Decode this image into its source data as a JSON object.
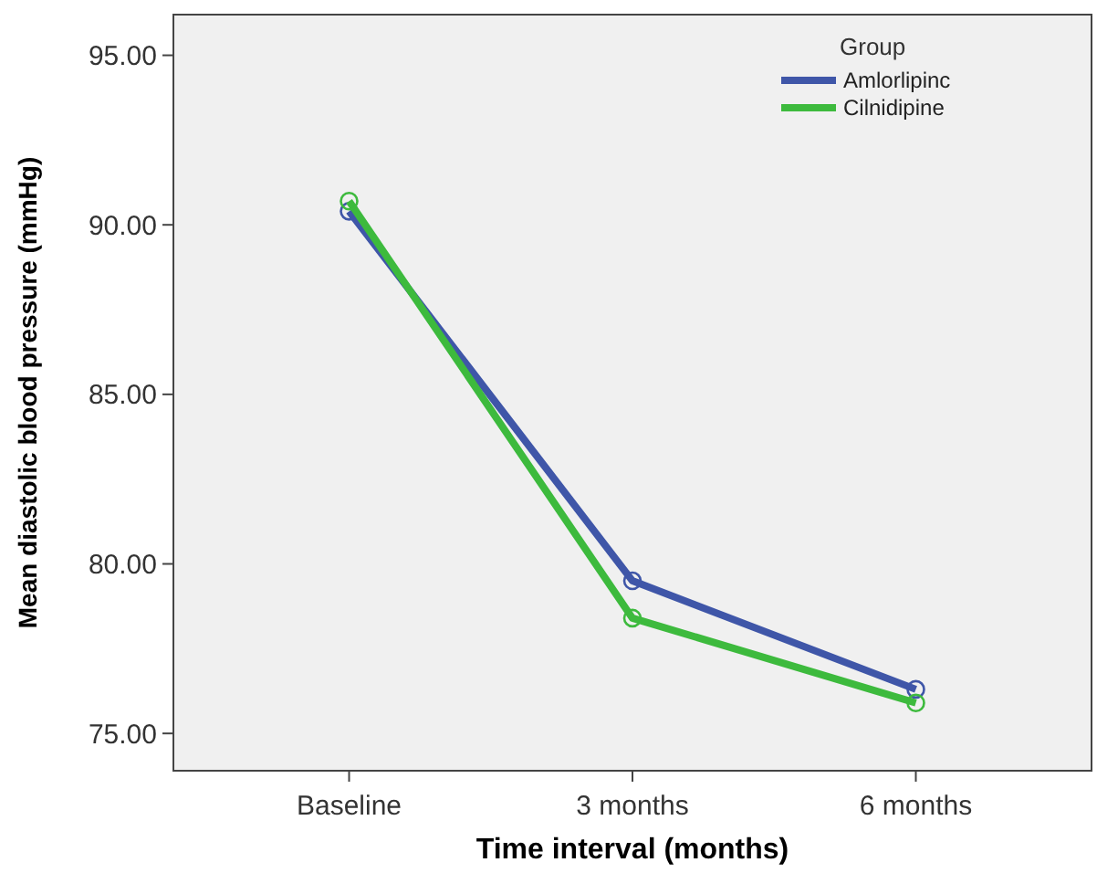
{
  "chart_data": {
    "type": "line",
    "xlabel": "Time interval (months)",
    "ylabel": "Mean diastolic blood pressure (mmHg)",
    "legend_title": "Group",
    "legend": "top right",
    "marker": "circle",
    "grid": false,
    "categories": [
      "Baseline",
      "3 months",
      "6 months"
    ],
    "ylim": [
      73.9,
      96.2
    ],
    "yticks": [
      {
        "value": 75,
        "label": "75.00"
      },
      {
        "value": 80,
        "label": "80.00"
      },
      {
        "value": 85,
        "label": "85.00"
      },
      {
        "value": 90,
        "label": "90.00"
      },
      {
        "value": 95,
        "label": "95.00"
      }
    ],
    "series": [
      {
        "name": "Amlorlipinc",
        "color": "#3f56a8",
        "values": [
          90.4,
          79.5,
          76.3
        ]
      },
      {
        "name": "Cilnidipine",
        "color": "#3dba3d",
        "values": [
          90.7,
          78.4,
          75.9
        ]
      }
    ]
  }
}
